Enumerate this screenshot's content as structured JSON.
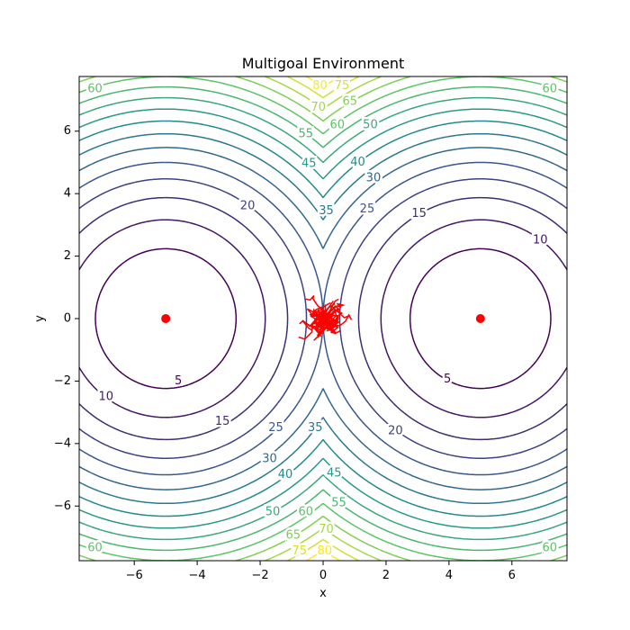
{
  "chart_data": {
    "type": "contour",
    "title": "Multigoal Environment",
    "xlabel": "x",
    "ylabel": "y",
    "xlim": [
      -7.75,
      7.75
    ],
    "ylim": [
      -7.75,
      7.75
    ],
    "x_ticks": [
      -6,
      -4,
      -2,
      0,
      2,
      4,
      6
    ],
    "y_ticks": [
      -6,
      -4,
      -2,
      0,
      2,
      4,
      6
    ],
    "x_tick_labels": [
      "−6",
      "−4",
      "−2",
      "0",
      "2",
      "4",
      "6"
    ],
    "y_tick_labels": [
      "−6",
      "−4",
      "−2",
      "0",
      "2",
      "4",
      "6"
    ],
    "grid": false,
    "colormap": "viridis",
    "goals": [
      {
        "x": -5,
        "y": 0
      },
      {
        "x": 5,
        "y": 0
      }
    ],
    "goal_color": "#ff0000",
    "trajectory_color": "#ff0000",
    "trajectory_center": {
      "x": 0,
      "y": 0
    },
    "contour_levels": [
      5,
      10,
      15,
      20,
      25,
      30,
      35,
      40,
      45,
      50,
      55,
      60,
      65,
      70,
      75,
      80
    ],
    "contour_labels": [
      {
        "text": "5",
        "level": 5,
        "x": -4.6,
        "y": -2.0
      },
      {
        "text": "5",
        "level": 5,
        "x": 3.95,
        "y": -1.95
      },
      {
        "text": "10",
        "level": 10,
        "x": -6.9,
        "y": -2.5
      },
      {
        "text": "10",
        "level": 10,
        "x": 6.9,
        "y": 2.5
      },
      {
        "text": "15",
        "level": 15,
        "x": -3.2,
        "y": -3.3
      },
      {
        "text": "15",
        "level": 15,
        "x": 3.05,
        "y": 3.35
      },
      {
        "text": "20",
        "level": 20,
        "x": -2.4,
        "y": 3.6
      },
      {
        "text": "20",
        "level": 20,
        "x": 2.3,
        "y": -3.6
      },
      {
        "text": "25",
        "level": 25,
        "x": -1.5,
        "y": -3.5
      },
      {
        "text": "25",
        "level": 25,
        "x": 1.4,
        "y": 3.5
      },
      {
        "text": "30",
        "level": 30,
        "x": -1.7,
        "y": -4.5
      },
      {
        "text": "30",
        "level": 30,
        "x": 1.6,
        "y": 4.5
      },
      {
        "text": "35",
        "level": 35,
        "x": -0.25,
        "y": -3.5
      },
      {
        "text": "35",
        "level": 35,
        "x": 0.1,
        "y": 3.45
      },
      {
        "text": "40",
        "level": 40,
        "x": -1.2,
        "y": -5.0
      },
      {
        "text": "40",
        "level": 40,
        "x": 1.1,
        "y": 5.0
      },
      {
        "text": "45",
        "level": 45,
        "x": -0.45,
        "y": 4.95
      },
      {
        "text": "45",
        "level": 45,
        "x": 0.35,
        "y": -4.95
      },
      {
        "text": "50",
        "level": 50,
        "x": -1.6,
        "y": -6.2
      },
      {
        "text": "50",
        "level": 50,
        "x": 1.5,
        "y": 6.2
      },
      {
        "text": "55",
        "level": 55,
        "x": -0.55,
        "y": 5.9
      },
      {
        "text": "55",
        "level": 55,
        "x": 0.5,
        "y": -5.9
      },
      {
        "text": "60",
        "level": 60,
        "x": -7.25,
        "y": 7.35
      },
      {
        "text": "60",
        "level": 60,
        "x": 7.2,
        "y": 7.35
      },
      {
        "text": "60",
        "level": 60,
        "x": -7.25,
        "y": -7.35
      },
      {
        "text": "60",
        "level": 60,
        "x": 7.2,
        "y": -7.35
      },
      {
        "text": "60",
        "level": 60,
        "x": 0.45,
        "y": 6.2
      },
      {
        "text": "60",
        "level": 60,
        "x": -0.55,
        "y": -6.2
      },
      {
        "text": "65",
        "level": 65,
        "x": 0.85,
        "y": 6.95
      },
      {
        "text": "65",
        "level": 65,
        "x": -0.95,
        "y": -6.95
      },
      {
        "text": "70",
        "level": 70,
        "x": -0.15,
        "y": 6.75
      },
      {
        "text": "70",
        "level": 70,
        "x": 0.1,
        "y": -6.75
      },
      {
        "text": "75",
        "level": 75,
        "x": 0.6,
        "y": 7.45
      },
      {
        "text": "75",
        "level": 75,
        "x": -0.75,
        "y": -7.45
      },
      {
        "text": "80",
        "level": 80,
        "x": -0.1,
        "y": 7.45
      },
      {
        "text": "80",
        "level": 80,
        "x": 0.05,
        "y": -7.45
      }
    ]
  }
}
